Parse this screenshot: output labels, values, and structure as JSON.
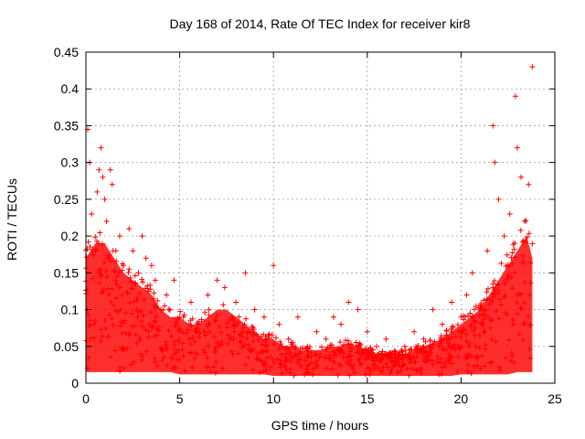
{
  "chart_data": {
    "type": "scatter",
    "title": "Day 168 of 2014, Rate Of TEC Index for receiver kir8",
    "xlabel": "GPS time / hours",
    "ylabel": "ROTI / TECUs",
    "xlim": [
      0,
      25
    ],
    "ylim": [
      0,
      0.45
    ],
    "x_ticks": [
      0,
      5,
      10,
      15,
      20,
      25
    ],
    "y_ticks": [
      0,
      0.05,
      0.1,
      0.15,
      0.2,
      0.25,
      0.3,
      0.35,
      0.4,
      0.45
    ],
    "x_tick_labels": [
      "0",
      "5",
      "10",
      "15",
      "20",
      "25"
    ],
    "y_tick_labels": [
      "0",
      "0.05",
      "0.1",
      "0.15",
      "0.2",
      "0.25",
      "0.3",
      "0.35",
      "0.4",
      "0.45"
    ],
    "grid": true,
    "marker": "+",
    "color": "#ff0000",
    "series": [
      {
        "name": "ROTI",
        "points": [
          [
            0.1,
            0.345
          ],
          [
            0.2,
            0.3
          ],
          [
            0.3,
            0.23
          ],
          [
            0.5,
            0.18
          ],
          [
            0.6,
            0.26
          ],
          [
            0.7,
            0.29
          ],
          [
            0.8,
            0.32
          ],
          [
            0.9,
            0.28
          ],
          [
            1.0,
            0.25
          ],
          [
            1.1,
            0.22
          ],
          [
            1.3,
            0.29
          ],
          [
            1.4,
            0.27
          ],
          [
            1.6,
            0.18
          ],
          [
            1.8,
            0.2
          ],
          [
            2.0,
            0.16
          ],
          [
            2.3,
            0.21
          ],
          [
            2.5,
            0.18
          ],
          [
            2.8,
            0.15
          ],
          [
            3.0,
            0.2
          ],
          [
            3.2,
            0.17
          ],
          [
            3.5,
            0.16
          ],
          [
            3.7,
            0.14
          ],
          [
            4.0,
            0.1
          ],
          [
            4.3,
            0.12
          ],
          [
            4.7,
            0.14
          ],
          [
            5.2,
            0.09
          ],
          [
            5.6,
            0.11
          ],
          [
            6.0,
            0.08
          ],
          [
            6.5,
            0.12
          ],
          [
            7.0,
            0.14
          ],
          [
            7.4,
            0.13
          ],
          [
            8.0,
            0.11
          ],
          [
            8.5,
            0.15
          ],
          [
            9.0,
            0.1
          ],
          [
            9.5,
            0.09
          ],
          [
            10.0,
            0.16
          ],
          [
            10.3,
            0.08
          ],
          [
            10.8,
            0.06
          ],
          [
            11.3,
            0.09
          ],
          [
            11.8,
            0.05
          ],
          [
            12.3,
            0.07
          ],
          [
            12.8,
            0.06
          ],
          [
            13.2,
            0.09
          ],
          [
            13.6,
            0.08
          ],
          [
            14.0,
            0.11
          ],
          [
            14.5,
            0.1
          ],
          [
            15.0,
            0.07
          ],
          [
            15.5,
            0.05
          ],
          [
            16.0,
            0.06
          ],
          [
            16.5,
            0.04
          ],
          [
            17.0,
            0.05
          ],
          [
            17.5,
            0.07
          ],
          [
            18.0,
            0.06
          ],
          [
            18.5,
            0.1
          ],
          [
            19.0,
            0.08
          ],
          [
            19.5,
            0.11
          ],
          [
            20.0,
            0.09
          ],
          [
            20.3,
            0.12
          ],
          [
            20.6,
            0.15
          ],
          [
            21.0,
            0.1
          ],
          [
            21.4,
            0.18
          ],
          [
            21.7,
            0.35
          ],
          [
            21.8,
            0.3
          ],
          [
            22.0,
            0.25
          ],
          [
            22.3,
            0.2
          ],
          [
            22.6,
            0.23
          ],
          [
            22.9,
            0.39
          ],
          [
            23.0,
            0.32
          ],
          [
            23.2,
            0.28
          ],
          [
            23.4,
            0.22
          ],
          [
            23.6,
            0.27
          ],
          [
            23.8,
            0.43
          ]
        ]
      }
    ],
    "envelope_hours": [
      0,
      0.5,
      1,
      1.5,
      2,
      2.5,
      3,
      3.5,
      4,
      4.5,
      5,
      5.5,
      6,
      6.5,
      7,
      7.5,
      8,
      8.5,
      9,
      9.5,
      10,
      10.5,
      11,
      11.5,
      12,
      12.5,
      13,
      13.5,
      14,
      14.5,
      15,
      15.5,
      16,
      16.5,
      17,
      17.5,
      18,
      18.5,
      19,
      19.5,
      20,
      20.5,
      21,
      21.5,
      22,
      22.5,
      23,
      23.5,
      23.8
    ],
    "envelope_upper": [
      0.17,
      0.19,
      0.19,
      0.17,
      0.15,
      0.14,
      0.13,
      0.12,
      0.1,
      0.09,
      0.09,
      0.08,
      0.08,
      0.09,
      0.1,
      0.1,
      0.09,
      0.08,
      0.07,
      0.06,
      0.06,
      0.05,
      0.05,
      0.045,
      0.045,
      0.045,
      0.05,
      0.05,
      0.055,
      0.05,
      0.045,
      0.04,
      0.04,
      0.04,
      0.04,
      0.045,
      0.05,
      0.055,
      0.06,
      0.07,
      0.08,
      0.09,
      0.1,
      0.12,
      0.14,
      0.16,
      0.18,
      0.2,
      0.17
    ],
    "envelope_lower": [
      0.015,
      0.015,
      0.015,
      0.015,
      0.015,
      0.015,
      0.015,
      0.015,
      0.015,
      0.015,
      0.012,
      0.012,
      0.012,
      0.012,
      0.012,
      0.012,
      0.012,
      0.012,
      0.012,
      0.012,
      0.01,
      0.01,
      0.01,
      0.01,
      0.01,
      0.01,
      0.01,
      0.01,
      0.01,
      0.01,
      0.01,
      0.01,
      0.01,
      0.01,
      0.01,
      0.01,
      0.01,
      0.01,
      0.01,
      0.01,
      0.012,
      0.012,
      0.012,
      0.012,
      0.012,
      0.012,
      0.015,
      0.015,
      0.015
    ]
  }
}
